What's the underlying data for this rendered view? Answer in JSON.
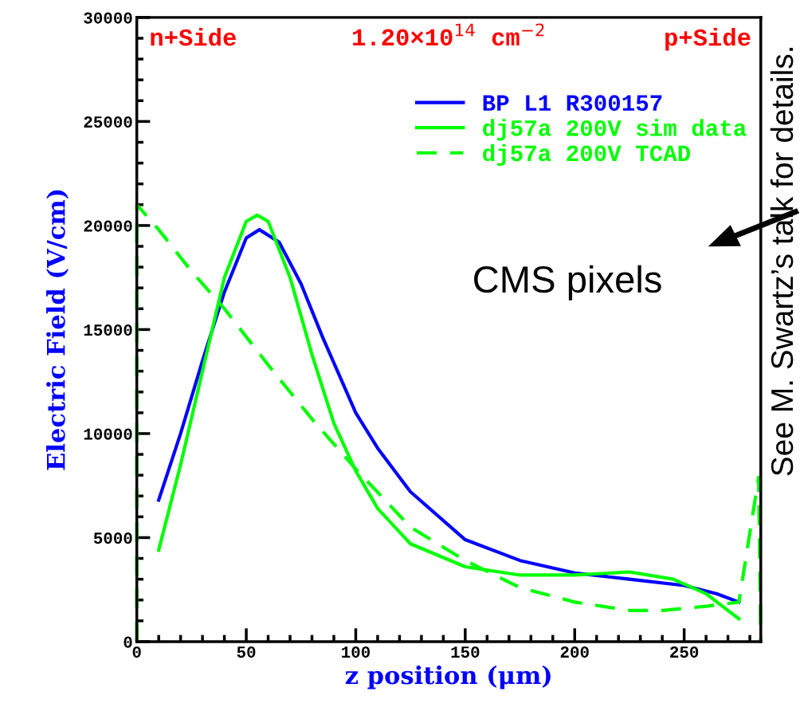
{
  "chart_data": {
    "type": "line",
    "xlabel": "z position (μm)",
    "ylabel": "Electric Field (V/cm)",
    "xlim": [
      0,
      285
    ],
    "ylim": [
      0,
      30000
    ],
    "xticks": [
      0,
      50,
      100,
      150,
      200,
      250
    ],
    "yticks": [
      0,
      5000,
      10000,
      15000,
      20000,
      25000,
      30000
    ],
    "grid": false,
    "legend": "top right",
    "annotations": [
      "n+Side",
      "1.20×10$^{14}$ cm$^{−2}$",
      "p+Side",
      "CMS pixels",
      "See M. Swartz’s talk for details."
    ],
    "series": [
      {
        "name": "BP L1 R300157",
        "color": "#0000ff",
        "line_style": "solid",
        "x": [
          10,
          20,
          30,
          40,
          50,
          56,
          65,
          75,
          85,
          100,
          110,
          125,
          150,
          175,
          200,
          225,
          250,
          265,
          275
        ],
        "values": [
          6800,
          10000,
          13500,
          16800,
          19400,
          19800,
          19200,
          17200,
          14600,
          11000,
          9300,
          7200,
          4900,
          3900,
          3300,
          3000,
          2700,
          2300,
          1900
        ]
      },
      {
        "name": "dj57a 200V sim data",
        "color": "#00ff00",
        "line_style": "solid",
        "x": [
          10,
          20,
          30,
          40,
          50,
          55,
          60,
          70,
          80,
          90,
          100,
          110,
          125,
          150,
          175,
          200,
          225,
          245,
          260,
          275
        ],
        "values": [
          4400,
          8500,
          13000,
          17500,
          20200,
          20500,
          20200,
          17500,
          13800,
          10500,
          8200,
          6400,
          4700,
          3600,
          3200,
          3200,
          3350,
          3000,
          2300,
          1100
        ]
      },
      {
        "name": "dj57a 200V TCAD",
        "color": "#00ff00",
        "line_style": "dashed",
        "x": [
          0,
          0,
          10,
          25,
          40,
          60,
          80,
          100,
          125,
          150,
          175,
          200,
          225,
          240,
          260,
          275,
          284,
          285
        ],
        "values": [
          0,
          21000,
          19800,
          17800,
          16000,
          13300,
          10700,
          8300,
          5500,
          3900,
          2600,
          1900,
          1500,
          1500,
          1700,
          1900,
          7900,
          0
        ]
      }
    ]
  }
}
